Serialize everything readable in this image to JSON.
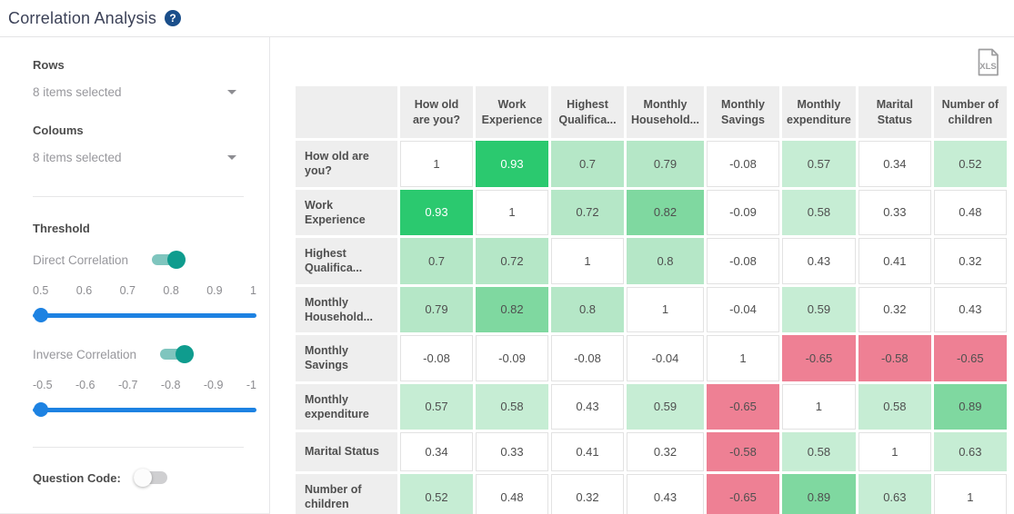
{
  "header": {
    "title": "Correlation Analysis",
    "help_glyph": "?"
  },
  "sidebar": {
    "rows_label": "Rows",
    "rows_value": "8 items selected",
    "columns_label": "Coloums",
    "columns_value": "8 items selected",
    "threshold_label": "Threshold",
    "direct": {
      "label": "Direct Correlation",
      "enabled": true,
      "value": 0.5,
      "ticks": [
        "0.5",
        "0.6",
        "0.7",
        "0.8",
        "0.9",
        "1"
      ]
    },
    "inverse": {
      "label": "Inverse Correlation",
      "enabled": true,
      "value": -0.5,
      "ticks": [
        "-0.5",
        "-0.6",
        "-0.7",
        "-0.8",
        "-0.9",
        "-1"
      ]
    },
    "question_code_label": "Question Code:",
    "question_code_enabled": false
  },
  "toolbar": {
    "export_label": "XLS"
  },
  "chart_data": {
    "type": "heatmap",
    "title": "Correlation Analysis",
    "categories": [
      "How old are you?",
      "Work Experience",
      "Highest Qualifica...",
      "Monthly Household...",
      "Monthly Savings",
      "Monthly expenditure",
      "Marital Status",
      "Number of children"
    ],
    "matrix": [
      [
        1,
        0.93,
        0.7,
        0.79,
        -0.08,
        0.57,
        0.34,
        0.52
      ],
      [
        0.93,
        1,
        0.72,
        0.82,
        -0.09,
        0.58,
        0.33,
        0.48
      ],
      [
        0.7,
        0.72,
        1,
        0.8,
        -0.08,
        0.43,
        0.41,
        0.32
      ],
      [
        0.79,
        0.82,
        0.8,
        1,
        -0.04,
        0.59,
        0.32,
        0.43
      ],
      [
        -0.08,
        -0.09,
        -0.08,
        -0.04,
        1,
        -0.65,
        -0.58,
        -0.65
      ],
      [
        0.57,
        0.58,
        0.43,
        0.59,
        -0.65,
        1,
        0.58,
        0.89
      ],
      [
        0.34,
        0.33,
        0.41,
        0.32,
        -0.58,
        0.58,
        1,
        0.63
      ],
      [
        0.52,
        0.48,
        0.32,
        0.43,
        -0.65,
        0.89,
        0.63,
        1
      ]
    ],
    "colors": {
      "strong_positive": "#2bc96f",
      "strong_positive_text": "#ffffff",
      "medium_positive": "#7fd8a0",
      "light_positive": "#b5e7c7",
      "very_light_positive": "#c6edd4",
      "neutral": "#ffffff",
      "negative": "#ee8094",
      "cell_text": "#4f4f4f"
    },
    "legend_position": "none",
    "thresholds": {
      "direct_min": 0.5,
      "inverse_min": -0.5
    }
  }
}
